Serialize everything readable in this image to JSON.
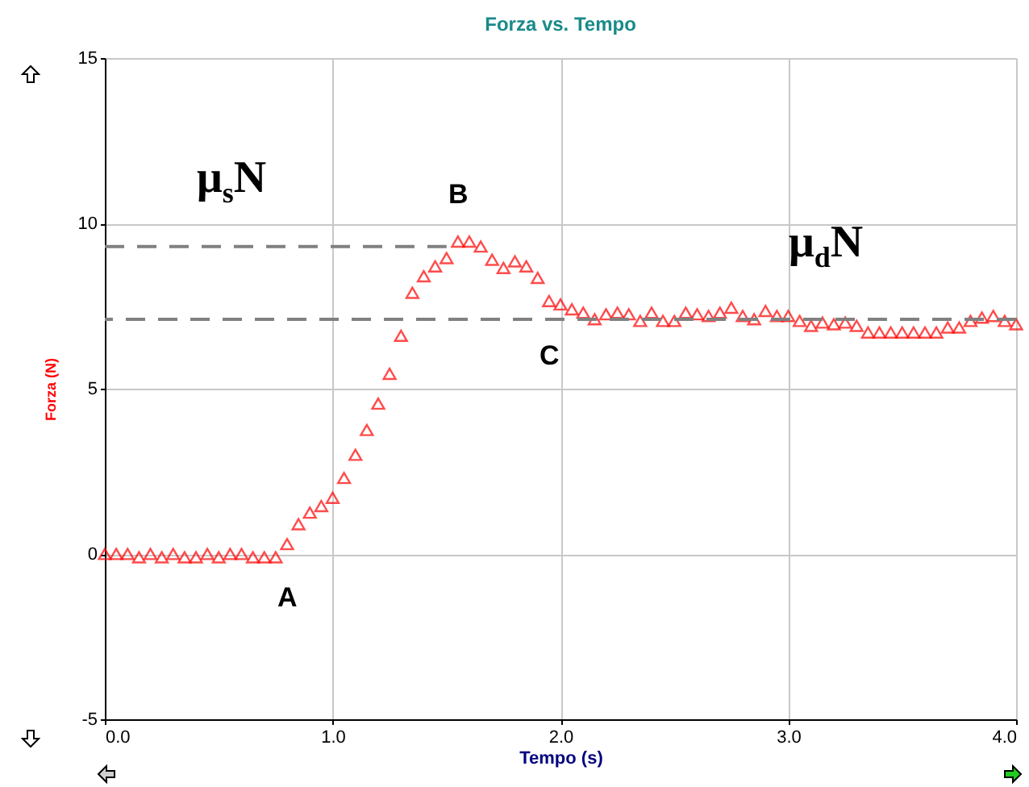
{
  "chart_data": {
    "type": "scatter",
    "title": "Forza vs. Tempo",
    "xlabel": "Tempo (s)",
    "ylabel": "Forza (N)",
    "xlim": [
      0,
      4
    ],
    "xticks": [
      {
        "value": 0,
        "label": "0.0"
      },
      {
        "value": 1,
        "label": "1.0"
      },
      {
        "value": 2,
        "label": "2.0"
      },
      {
        "value": 3,
        "label": "3.0"
      },
      {
        "value": 4,
        "label": "4.0"
      }
    ],
    "ylim": [
      -5,
      15
    ],
    "yticks": [
      -5,
      0,
      5,
      10,
      15
    ],
    "grid": true,
    "marker": "triangle",
    "series": [
      {
        "color": "#ff0000",
        "x": [
          0,
          0.05,
          0.1,
          0.15,
          0.2,
          0.25,
          0.3,
          0.35,
          0.4,
          0.45,
          0.5,
          0.55,
          0.6,
          0.65,
          0.7,
          0.75,
          0.8,
          0.85,
          0.9,
          0.95,
          1.0,
          1.05,
          1.1,
          1.15,
          1.2,
          1.25,
          1.3,
          1.35,
          1.4,
          1.45,
          1.5,
          1.55,
          1.6,
          1.65,
          1.7,
          1.75,
          1.8,
          1.85,
          1.9,
          1.95,
          2.0,
          2.05,
          2.1,
          2.15,
          2.2,
          2.25,
          2.3,
          2.35,
          2.4,
          2.45,
          2.5,
          2.55,
          2.6,
          2.65,
          2.7,
          2.75,
          2.8,
          2.85,
          2.9,
          2.95,
          3.0,
          3.05,
          3.1,
          3.15,
          3.2,
          3.25,
          3.3,
          3.35,
          3.4,
          3.45,
          3.5,
          3.55,
          3.6,
          3.65,
          3.7,
          3.75,
          3.8,
          3.85,
          3.9,
          3.95,
          4.0
        ],
        "values": [
          0,
          0,
          0,
          -0.1,
          0,
          -0.1,
          0,
          -0.1,
          -0.1,
          0,
          -0.1,
          0,
          0,
          -0.1,
          -0.1,
          -0.1,
          0.3,
          0.9,
          1.25,
          1.45,
          1.7,
          2.3,
          3.0,
          3.75,
          4.55,
          5.45,
          6.6,
          7.9,
          8.4,
          8.7,
          8.95,
          9.45,
          9.45,
          9.3,
          8.9,
          8.65,
          8.85,
          8.7,
          8.35,
          7.65,
          7.55,
          7.4,
          7.3,
          7.1,
          7.25,
          7.3,
          7.25,
          7.05,
          7.3,
          7.05,
          7.05,
          7.3,
          7.25,
          7.2,
          7.3,
          7.45,
          7.2,
          7.1,
          7.35,
          7.2,
          7.2,
          7.05,
          6.9,
          7.0,
          6.95,
          7.0,
          6.9,
          6.7,
          6.7,
          6.7,
          6.7,
          6.7,
          6.7,
          6.7,
          6.85,
          6.85,
          7.05,
          7.15,
          7.2,
          7.05,
          6.95
        ]
      },
      {
        "type": "line",
        "name": "μ$_{s}$N",
        "color": "#808080",
        "line_style": "dashed",
        "marker": "none",
        "x": [
          0,
          1.5
        ],
        "values": [
          9.3,
          9.3
        ]
      }
    ],
    "ref_lines": [
      {
        "axis": "y",
        "value": 7.1,
        "label": "μ$_{d}$N",
        "color": "#808080",
        "line_style": "dashed"
      }
    ],
    "annotations": [
      {
        "text": "A",
        "x": 0.8,
        "y": 0.3
      },
      {
        "text": "B",
        "x": 1.55,
        "y": 9.45
      },
      {
        "text": "C",
        "x": 1.95,
        "y": 7.65
      }
    ]
  }
}
